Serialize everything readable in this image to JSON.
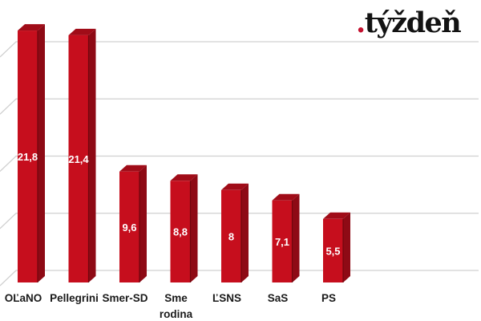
{
  "logo": {
    "dot": ".",
    "text": "týždeň",
    "dot_color": "#c41230",
    "text_color": "#131313"
  },
  "chart_data": {
    "type": "bar",
    "style": "3d-column",
    "title": "",
    "xlabel": "",
    "ylabel": "",
    "legend": "none",
    "grid": "horizontal",
    "categories": [
      "OĽaNO",
      "Pellegrini",
      "Smer-SD",
      "Sme rodina",
      "ĽSNS",
      "SaS",
      "PS"
    ],
    "values": [
      21.8,
      21.4,
      9.6,
      8.8,
      8,
      7.1,
      5.5
    ],
    "value_labels": [
      "21,8",
      "21,4",
      "9,6",
      "8,8",
      "8",
      "7,1",
      "5,5"
    ],
    "gridline_values": [
      0,
      5,
      10,
      15,
      20
    ],
    "ylim": [
      0,
      22
    ],
    "colors": {
      "bar_front": "#c60e1d",
      "bar_side": "#8e0a15",
      "bar_top": "#a00c18",
      "bar_edge": "#70060e",
      "value_label": "#ffffff",
      "category_label": "#1a1a1a",
      "gridline": "#d0d0d0",
      "background": "#ffffff"
    }
  }
}
